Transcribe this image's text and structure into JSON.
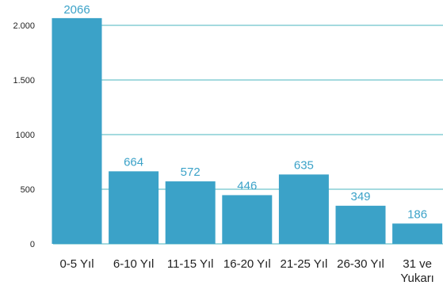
{
  "chart_data": {
    "type": "bar",
    "title": "",
    "xlabel": "",
    "ylabel": "",
    "ylim": [
      0,
      2000
    ],
    "yticks": [
      0,
      500,
      1000,
      1500,
      2000
    ],
    "ytick_labels": [
      "0",
      "500",
      "1000",
      "1.500",
      "2.000"
    ],
    "grid": true,
    "categories": [
      [
        "0-5 Yıl"
      ],
      [
        "6-10 Yıl"
      ],
      [
        "11-15 Yıl"
      ],
      [
        "16-20 Yıl"
      ],
      [
        "21-25 Yıl"
      ],
      [
        "26-30 Yıl"
      ],
      [
        "31 ve",
        "Yukarı"
      ]
    ],
    "values": [
      2066,
      664,
      572,
      446,
      635,
      349,
      186
    ],
    "colors": {
      "bar": "#3ba2c8",
      "data_label": "#3ba2c8",
      "grid": "#49b6bf"
    }
  }
}
